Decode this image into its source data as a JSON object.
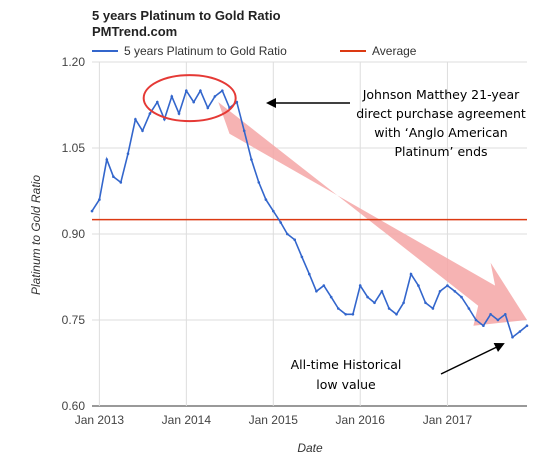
{
  "chart_data": {
    "type": "line",
    "title": "5 years Platinum to Gold Ratio",
    "subtitle": "PMTrend.com",
    "xlabel": "Date",
    "ylabel": "Platinum to Gold Ratio",
    "x_ticks": [
      "Jan 2013",
      "Jan 2014",
      "Jan 2015",
      "Jan 2016",
      "Jan 2017"
    ],
    "y_ticks": [
      "0.60",
      "0.75",
      "0.90",
      "1.05",
      "1.20"
    ],
    "ylim": [
      0.6,
      1.2
    ],
    "xlim": [
      "2012-12",
      "2017-12"
    ],
    "grid": true,
    "legend_position": "top",
    "colors": {
      "series": "#3366cc",
      "average": "#dc3912",
      "arrow": "#f4a6a6",
      "highlight": "#e53935"
    },
    "series": [
      {
        "name": "5 years Platinum to Gold Ratio",
        "x": [
          "2012-12-01",
          "2013-01-01",
          "2013-02-01",
          "2013-03-01",
          "2013-04-01",
          "2013-05-01",
          "2013-06-01",
          "2013-07-01",
          "2013-08-01",
          "2013-09-01",
          "2013-10-01",
          "2013-11-01",
          "2013-12-01",
          "2014-01-01",
          "2014-02-01",
          "2014-03-01",
          "2014-04-01",
          "2014-05-01",
          "2014-06-01",
          "2014-07-01",
          "2014-08-01",
          "2014-09-01",
          "2014-10-01",
          "2014-11-01",
          "2014-12-01",
          "2015-01-01",
          "2015-02-01",
          "2015-03-01",
          "2015-04-01",
          "2015-05-01",
          "2015-06-01",
          "2015-07-01",
          "2015-08-01",
          "2015-09-01",
          "2015-10-01",
          "2015-11-01",
          "2015-12-01",
          "2016-01-01",
          "2016-02-01",
          "2016-03-01",
          "2016-04-01",
          "2016-05-01",
          "2016-06-01",
          "2016-07-01",
          "2016-08-01",
          "2016-09-01",
          "2016-10-01",
          "2016-11-01",
          "2016-12-01",
          "2017-01-01",
          "2017-02-01",
          "2017-03-01",
          "2017-04-01",
          "2017-05-01",
          "2017-06-01",
          "2017-07-01",
          "2017-08-01",
          "2017-09-01",
          "2017-10-01",
          "2017-11-01",
          "2017-12-01"
        ],
        "values": [
          0.94,
          0.96,
          1.03,
          1.0,
          0.99,
          1.04,
          1.1,
          1.08,
          1.11,
          1.13,
          1.1,
          1.14,
          1.11,
          1.15,
          1.13,
          1.15,
          1.12,
          1.14,
          1.15,
          1.12,
          1.13,
          1.08,
          1.03,
          0.99,
          0.96,
          0.94,
          0.92,
          0.9,
          0.89,
          0.86,
          0.83,
          0.8,
          0.81,
          0.79,
          0.77,
          0.76,
          0.76,
          0.81,
          0.79,
          0.78,
          0.8,
          0.77,
          0.76,
          0.78,
          0.83,
          0.81,
          0.78,
          0.77,
          0.8,
          0.81,
          0.8,
          0.79,
          0.77,
          0.75,
          0.74,
          0.76,
          0.75,
          0.76,
          0.72,
          0.73,
          0.74
        ]
      },
      {
        "name": "Average",
        "value": 0.925
      }
    ],
    "annotations": [
      "Johnson Matthey 21-year direct purchase agreement with ‘Anglo American Platinum’ ends",
      "All-time Historical low value"
    ]
  }
}
